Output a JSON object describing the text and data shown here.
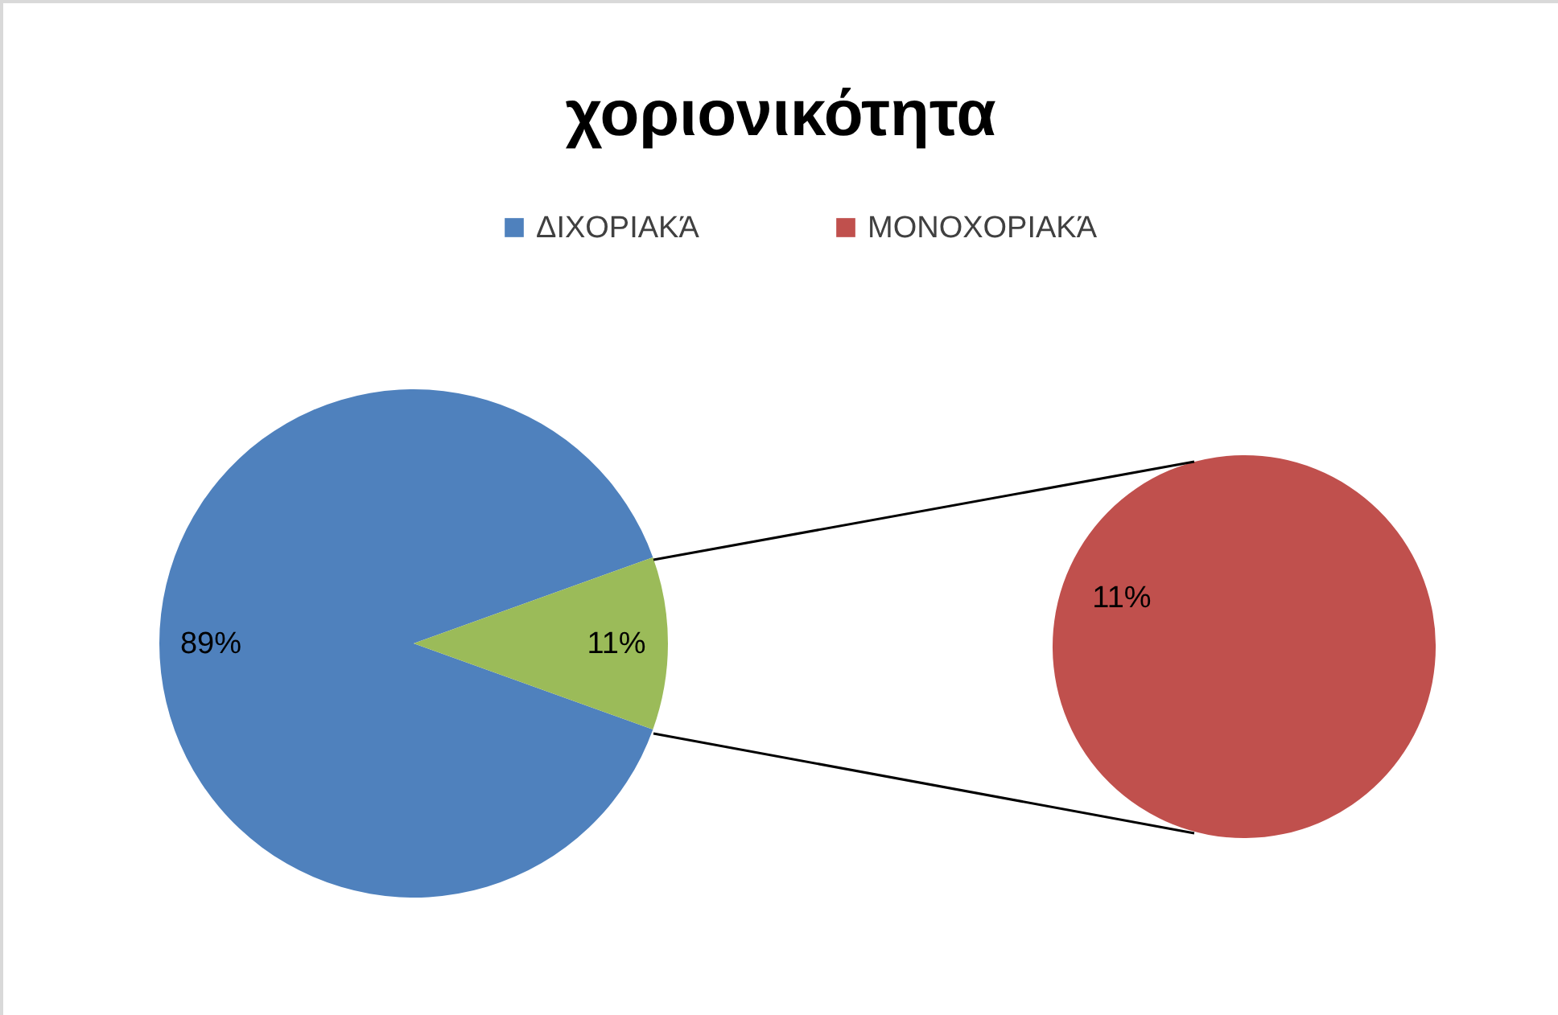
{
  "chart_data": [
    {
      "type": "pie",
      "title": "χοριονικότητα",
      "legend": "top",
      "categories": [
        "ΔΙΧΟΡΙΑΚΆ",
        null
      ],
      "values": [
        89,
        11
      ],
      "colors": [
        "#4f81bd",
        "#9bbb59"
      ],
      "value_labels": [
        "89%",
        "11%"
      ]
    },
    {
      "type": "pie",
      "legend": "top",
      "categories": [
        "ΜΟΝΟΧΟΡΙΑΚΆ"
      ],
      "values": [
        11
      ],
      "colors": [
        "#c0504d"
      ],
      "value_labels": [
        "11%"
      ]
    }
  ]
}
